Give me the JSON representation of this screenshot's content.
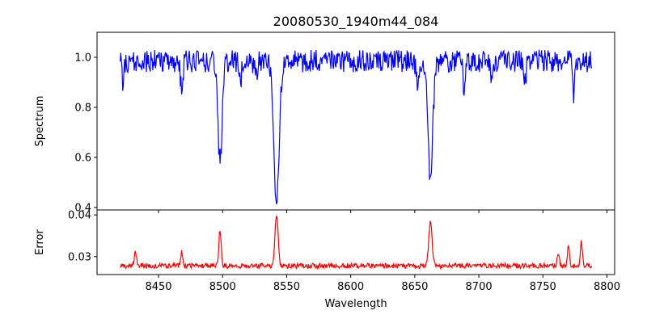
{
  "figure": {
    "title": "20080530_1940m44_084"
  },
  "chart_data": [
    {
      "type": "line",
      "panel": "top",
      "ylabel": "Spectrum",
      "xlabel": "",
      "xlim": [
        8402,
        8806
      ],
      "ylim": [
        0.39,
        1.1
      ],
      "x_ticks": [
        8450,
        8500,
        8550,
        8600,
        8650,
        8700,
        8750,
        8800
      ],
      "x_tick_labels_shown": false,
      "y_ticks": [
        0.4,
        0.6,
        0.8,
        1.0
      ],
      "y_tick_labels": [
        "0.4",
        "0.6",
        "0.8",
        "1.0"
      ],
      "grid": false,
      "color": "#0000ff",
      "series": [
        {
          "x_range": [
            8420,
            8788
          ],
          "baseline": 0.985,
          "noise_amplitude": 0.045,
          "absorption_lines": [
            {
              "center": 8498.0,
              "depth": 0.41,
              "width": 1.6
            },
            {
              "center": 8542.1,
              "depth": 0.57,
              "width": 2.0
            },
            {
              "center": 8662.2,
              "depth": 0.49,
              "width": 1.8
            },
            {
              "center": 8468.0,
              "depth": 0.1,
              "width": 1.0
            },
            {
              "center": 8514.0,
              "depth": 0.07,
              "width": 1.0
            },
            {
              "center": 8526.0,
              "depth": 0.05,
              "width": 1.2
            },
            {
              "center": 8652.0,
              "depth": 0.09,
              "width": 0.9
            },
            {
              "center": 8688.6,
              "depth": 0.15,
              "width": 0.8
            },
            {
              "center": 8710.0,
              "depth": 0.08,
              "width": 0.9
            },
            {
              "center": 8736.0,
              "depth": 0.09,
              "width": 0.9
            },
            {
              "center": 8774.0,
              "depth": 0.13,
              "width": 0.8
            },
            {
              "center": 8422.0,
              "depth": 0.08,
              "width": 0.7
            }
          ]
        }
      ]
    },
    {
      "type": "line",
      "panel": "bottom",
      "xlabel": "Wavelength",
      "ylabel": "Error",
      "xlim": [
        8402,
        8806
      ],
      "ylim": [
        0.0257,
        0.0412
      ],
      "x_ticks": [
        8450,
        8500,
        8550,
        8600,
        8650,
        8700,
        8750,
        8800
      ],
      "x_tick_labels": [
        "8450",
        "8500",
        "8550",
        "8600",
        "8650",
        "8700",
        "8750",
        "8800"
      ],
      "y_ticks": [
        0.03,
        0.04
      ],
      "y_tick_labels": [
        "0.03",
        "0.04"
      ],
      "grid": false,
      "color": "#ff0000",
      "series": [
        {
          "x_range": [
            8420,
            8788
          ],
          "baseline": 0.0278,
          "noise_amplitude": 0.0006,
          "peaks": [
            {
              "center": 8432.0,
              "height": 0.0033,
              "width": 0.9
            },
            {
              "center": 8468.0,
              "height": 0.0032,
              "width": 0.9
            },
            {
              "center": 8498.0,
              "height": 0.0088,
              "width": 0.9
            },
            {
              "center": 8542.1,
              "height": 0.0125,
              "width": 1.2
            },
            {
              "center": 8662.2,
              "height": 0.0103,
              "width": 1.3
            },
            {
              "center": 8762.0,
              "height": 0.0033,
              "width": 0.8
            },
            {
              "center": 8770.0,
              "height": 0.0052,
              "width": 0.8
            },
            {
              "center": 8780.0,
              "height": 0.0058,
              "width": 0.8
            }
          ]
        }
      ]
    }
  ]
}
